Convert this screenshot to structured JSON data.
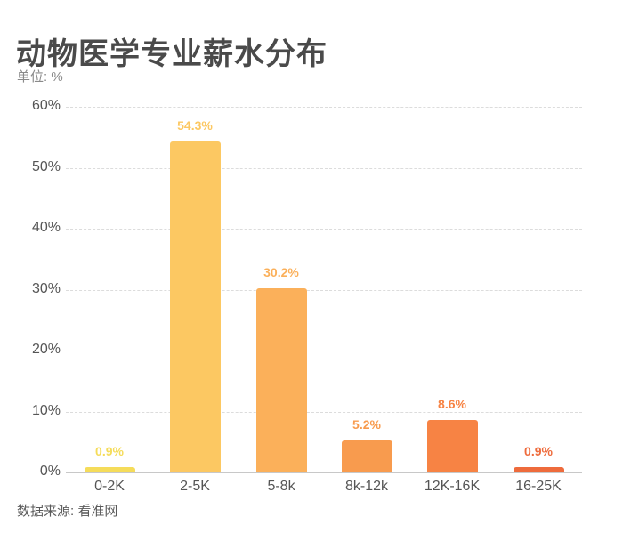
{
  "title": "动物医学专业薪水分布",
  "subtitle": "单位: %",
  "source": "数据来源: 看准网",
  "chart_data": {
    "type": "bar",
    "title": "动物医学专业薪水分布",
    "subtitle": "单位: %",
    "xlabel": "",
    "ylabel": "%",
    "ylim": [
      0,
      60
    ],
    "yticks": [
      "0%",
      "10%",
      "20%",
      "30%",
      "40%",
      "50%",
      "60%"
    ],
    "grid": true,
    "categories": [
      "0-2K",
      "2-5K",
      "5-8k",
      "8k-12k",
      "12K-16K",
      "16-25K"
    ],
    "values": [
      0.9,
      54.3,
      30.2,
      5.2,
      8.6,
      0.9
    ],
    "labels": [
      "0.9%",
      "54.3%",
      "30.2%",
      "5.2%",
      "8.6%",
      "0.9%"
    ],
    "colors": [
      "#F5DC5A",
      "#FCC862",
      "#FBB05A",
      "#F89B4E",
      "#F78344",
      "#EE6B3C"
    ],
    "source": "数据来源: 看准网"
  }
}
